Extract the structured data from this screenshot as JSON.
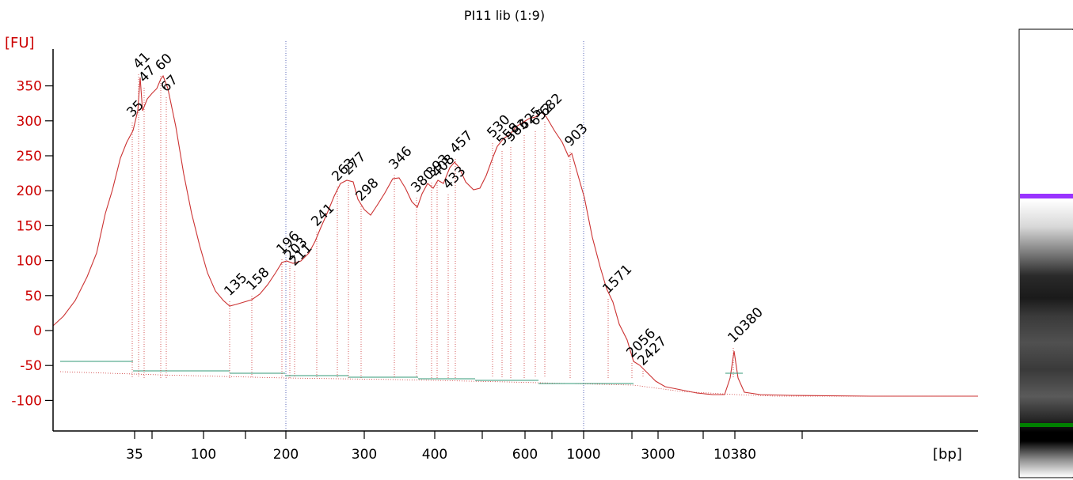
{
  "chart_data": {
    "type": "line",
    "title": "PI11 lib (1:9)",
    "ylabel": "[FU]",
    "xlabel": "[bp]",
    "ylim": [
      -140,
      400
    ],
    "y_ticks": [
      350,
      300,
      250,
      200,
      150,
      100,
      50,
      0,
      -50,
      -100
    ],
    "x_tick_labels": [
      {
        "label": "35",
        "bp": 35
      },
      {
        "label": "100",
        "bp": 100
      },
      {
        "label": "200",
        "bp": 200
      },
      {
        "label": "300",
        "bp": 300
      },
      {
        "label": "400",
        "bp": 400
      },
      {
        "label": "600",
        "bp": 600
      },
      {
        "label": "1000",
        "bp": 1000
      },
      {
        "label": "3000",
        "bp": 3000
      },
      {
        "label": "10380",
        "bp": 10380
      }
    ],
    "markers": {
      "lower": {
        "label": "35",
        "color": "#008000"
      },
      "upper": {
        "label": "10380",
        "color": "#9933ff"
      }
    },
    "peaks": [
      {
        "label": "35",
        "value": 300
      },
      {
        "label": "41",
        "value": 360
      },
      {
        "label": "47",
        "value": 340
      },
      {
        "label": "60",
        "value": 362
      },
      {
        "label": "67",
        "value": 350
      },
      {
        "label": "135",
        "value": 33
      },
      {
        "label": "158",
        "value": 40
      },
      {
        "label": "196",
        "value": 96
      },
      {
        "label": "203",
        "value": 93
      },
      {
        "label": "211",
        "value": 93
      },
      {
        "label": "241",
        "value": 145
      },
      {
        "label": "263",
        "value": 205
      },
      {
        "label": "277",
        "value": 210
      },
      {
        "label": "298",
        "value": 175
      },
      {
        "label": "346",
        "value": 218
      },
      {
        "label": "380",
        "value": 180
      },
      {
        "label": "393",
        "value": 210
      },
      {
        "label": "408",
        "value": 218
      },
      {
        "label": "433",
        "value": 215
      },
      {
        "label": "457",
        "value": 240
      },
      {
        "label": "530",
        "value": 260
      },
      {
        "label": "558",
        "value": 280
      },
      {
        "label": "583",
        "value": 283
      },
      {
        "label": "625",
        "value": 290
      },
      {
        "label": "652",
        "value": 300
      },
      {
        "label": "682",
        "value": 305
      },
      {
        "label": "903",
        "value": 248
      },
      {
        "label": "1571",
        "value": 55
      },
      {
        "label": "2056",
        "value": -47
      },
      {
        "label": "2427",
        "value": -55
      },
      {
        "label": "10380",
        "value": -30
      }
    ],
    "grid": false,
    "ladder_colors": {
      "upper_marker": "#9933ff",
      "lower_marker": "#008000"
    }
  }
}
